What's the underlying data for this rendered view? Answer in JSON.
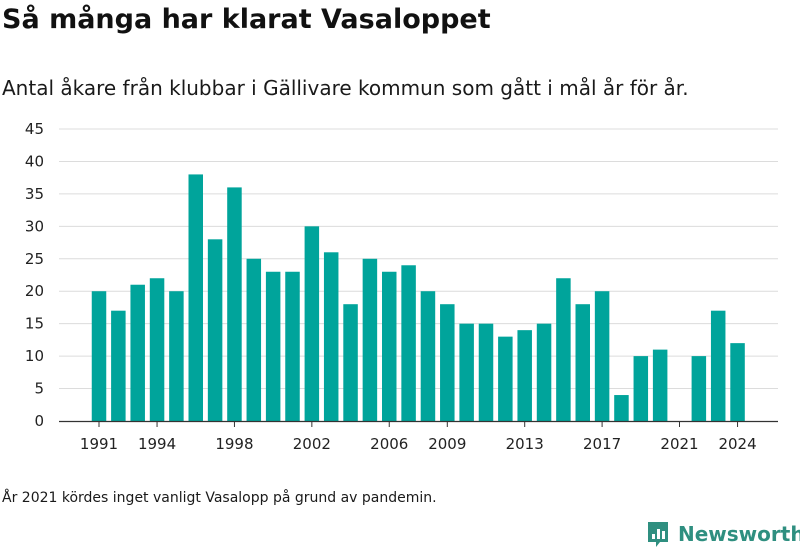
{
  "title": "Så många har klarat Vasaloppet",
  "subtitle": "Antal åkare från klubbar i Gällivare kommun som gått i mål år för år.",
  "footnote": "År 2021 kördes inget vanligt Vasalopp på grund av pandemin.",
  "brand": {
    "name": "Newsworthy",
    "icon": "newsworthy-logo-icon",
    "color": "#2f8f80"
  },
  "chart_data": {
    "type": "bar",
    "title": "",
    "xlabel": "",
    "ylabel": "",
    "x": [
      1991,
      1992,
      1993,
      1994,
      1995,
      1996,
      1997,
      1998,
      1999,
      2000,
      2001,
      2002,
      2003,
      2004,
      2005,
      2006,
      2007,
      2008,
      2009,
      2010,
      2011,
      2012,
      2013,
      2014,
      2015,
      2016,
      2017,
      2018,
      2019,
      2020,
      2021,
      2022,
      2023,
      2024
    ],
    "values": [
      20,
      17,
      21,
      22,
      20,
      38,
      28,
      36,
      25,
      23,
      23,
      30,
      26,
      18,
      25,
      23,
      24,
      20,
      18,
      15,
      15,
      13,
      14,
      15,
      22,
      18,
      20,
      4,
      10,
      11,
      0,
      10,
      17,
      12
    ],
    "ylim": [
      0,
      45
    ],
    "yticks": [
      0,
      5,
      10,
      15,
      20,
      25,
      30,
      35,
      40,
      45
    ],
    "xtick_labels": [
      "1991",
      "1994",
      "1998",
      "2002",
      "2006",
      "2009",
      "2013",
      "2017",
      "2021",
      "2024"
    ],
    "bar_color": "#00a49b",
    "grid": true,
    "legend": "none"
  }
}
